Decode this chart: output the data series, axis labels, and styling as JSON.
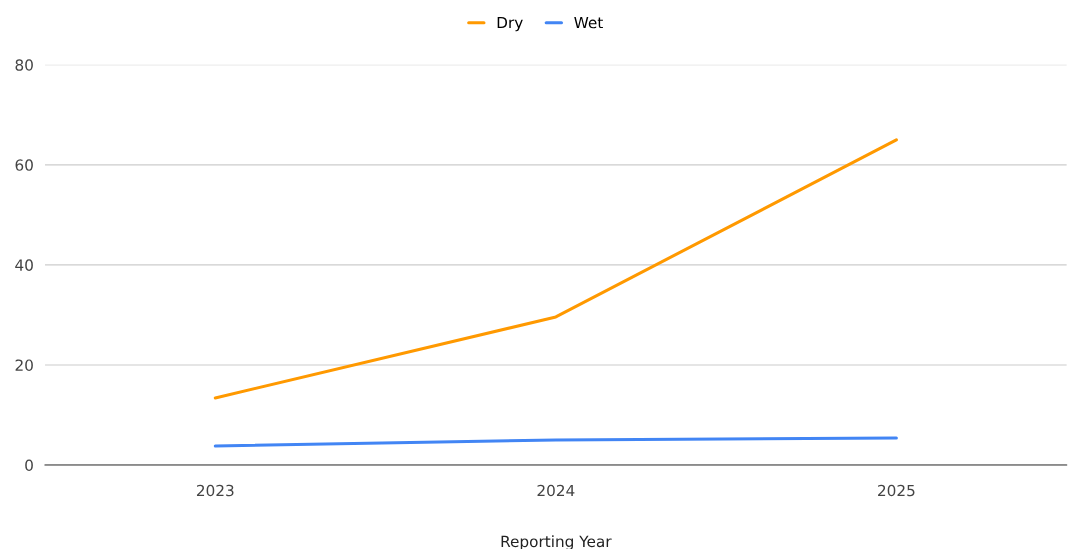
{
  "chart_data": {
    "type": "line",
    "xlabel": "Reporting Year",
    "categories": [
      "2023",
      "2024",
      "2025"
    ],
    "series": [
      {
        "name": "Dry",
        "color": "#ff9900",
        "values": [
          13.4,
          29.6,
          65
        ]
      },
      {
        "name": "Wet",
        "color": "#4285f4",
        "values": [
          3.8,
          5,
          5.4
        ]
      }
    ],
    "ylim": [
      0,
      80
    ],
    "yticks": [
      0,
      20,
      40,
      60,
      80
    ],
    "grid": "y",
    "legend": "top",
    "marker": "none",
    "line_style": "solid"
  }
}
